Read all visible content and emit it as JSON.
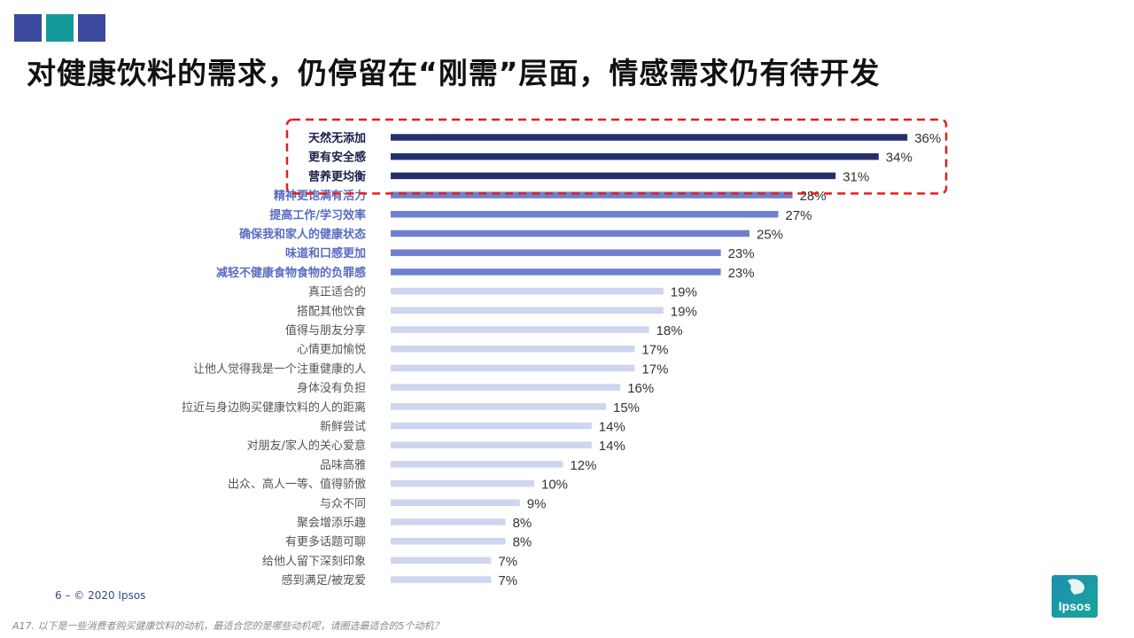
{
  "header": {
    "title": "对健康饮料的需求，仍停留在“刚需”层面，情感需求仍有待开发",
    "squares": [
      "#3b4a9e",
      "#159a9c",
      "#3b4a9e"
    ]
  },
  "colors": {
    "dark": "#25306b",
    "medium": "#6f80cf",
    "light": "#cdd5ef",
    "highlight_border": "#e0201e"
  },
  "chart_data": {
    "type": "bar",
    "orientation": "horizontal",
    "categories": [
      "天然无添加",
      "更有安全感",
      "营养更均衡",
      "精神更饱满有活力",
      "提高工作/学习效率",
      "确保我和家人的健康状态",
      "味道和口感更加",
      "减轻不健康食物食物的负罪感",
      "真正适合的",
      "搭配其他饮食",
      "值得与朋友分享",
      "心情更加愉悦",
      "让他人觉得我是一个注重健康的人",
      "身体没有负担",
      "拉近与身边购买健康饮料的人的距离",
      "新鲜尝试",
      "对朋友/家人的关心爱意",
      "品味高雅",
      "出众、高人一等、值得骄傲",
      "与众不同",
      "聚会增添乐趣",
      "有更多话题可聊",
      "给他人留下深刻印象",
      "感到满足/被宠爱"
    ],
    "values": [
      36,
      34,
      31,
      28,
      27,
      25,
      23,
      23,
      19,
      19,
      18,
      17,
      17,
      16,
      15,
      14,
      14,
      12,
      10,
      9,
      8,
      8,
      7,
      7
    ],
    "value_labels": [
      "36%",
      "34%",
      "31%",
      "28%",
      "27%",
      "25%",
      "23%",
      "23%",
      "19%",
      "19%",
      "18%",
      "17%",
      "17%",
      "16%",
      "15%",
      "14%",
      "14%",
      "12%",
      "10%",
      "9%",
      "8%",
      "8%",
      "7%",
      "7%"
    ],
    "groups": [
      "dark",
      "dark",
      "dark",
      "medium",
      "medium",
      "medium",
      "medium",
      "medium",
      "light",
      "light",
      "light",
      "light",
      "light",
      "light",
      "light",
      "light",
      "light",
      "light",
      "light",
      "light",
      "light",
      "light",
      "light",
      "light"
    ],
    "highlighted_count": 3,
    "xlim": [
      0,
      40
    ],
    "grid": false,
    "legend": "none"
  },
  "footer": {
    "page": "6 –  © 2020 Ipsos",
    "note": "A17. 以下是一些消费者购买健康饮料的动机，最适合您的是哪些动机呢，请圈选最适合的5个动机？"
  },
  "logo": {
    "text": "Ipsos",
    "bg": "#1e8fb0",
    "bg2": "#17a59b"
  }
}
